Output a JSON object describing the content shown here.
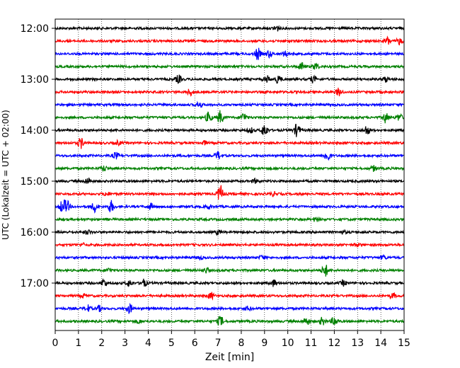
{
  "chart_data": {
    "type": "line",
    "title": "",
    "xlabel": "Zeit  [min]",
    "ylabel": "UTC (Lokalzeit = UTC + 02:00)",
    "xlim": [
      0,
      15
    ],
    "x_ticks": [
      "0",
      "1",
      "2",
      "3",
      "4",
      "5",
      "6",
      "7",
      "8",
      "9",
      "10",
      "11",
      "12",
      "13",
      "14",
      "15"
    ],
    "y_ticks": [
      "12:00",
      "13:00",
      "14:00",
      "15:00",
      "16:00",
      "17:00"
    ],
    "grid": "vertical",
    "minutes_per_trace": 15,
    "trace_colors": [
      "#000000",
      "#ff0000",
      "#0000ff",
      "#008000"
    ],
    "traces": [
      {
        "start": "12:00",
        "events": [
          [
            9.5,
            0.5
          ]
        ]
      },
      {
        "start": "12:15",
        "events": [
          [
            14.3,
            0.6
          ],
          [
            14.8,
            0.5
          ]
        ]
      },
      {
        "start": "12:30",
        "events": [
          [
            8.7,
            0.9
          ],
          [
            9.2,
            0.5
          ],
          [
            9.9,
            0.4
          ]
        ]
      },
      {
        "start": "12:45",
        "events": [
          [
            10.6,
            0.6
          ],
          [
            11.2,
            0.5
          ]
        ]
      },
      {
        "start": "13:00",
        "events": [
          [
            5.3,
            0.6
          ],
          [
            9.1,
            0.5
          ],
          [
            9.6,
            0.6
          ],
          [
            11.1,
            0.5
          ],
          [
            14.2,
            0.4
          ]
        ]
      },
      {
        "start": "13:15",
        "events": [
          [
            5.8,
            0.5
          ],
          [
            12.2,
            0.6
          ]
        ]
      },
      {
        "start": "13:30",
        "events": [
          [
            6.2,
            0.4
          ]
        ]
      },
      {
        "start": "13:45",
        "events": [
          [
            6.6,
            0.8
          ],
          [
            7.1,
            1.0
          ],
          [
            8.1,
            0.7
          ],
          [
            14.2,
            0.8
          ],
          [
            14.8,
            0.5
          ]
        ]
      },
      {
        "start": "14:00",
        "events": [
          [
            9.0,
            1.0
          ],
          [
            10.4,
            1.0
          ],
          [
            13.4,
            0.7
          ],
          [
            8.4,
            0.4
          ]
        ]
      },
      {
        "start": "14:15",
        "events": [
          [
            1.1,
            0.8
          ],
          [
            2.7,
            0.3
          ],
          [
            6.4,
            0.3
          ]
        ]
      },
      {
        "start": "14:30",
        "events": [
          [
            2.6,
            0.5
          ],
          [
            7.0,
            0.6
          ],
          [
            11.7,
            0.9
          ]
        ]
      },
      {
        "start": "14:45",
        "events": [
          [
            2.1,
            0.4
          ],
          [
            13.7,
            0.4
          ]
        ]
      },
      {
        "start": "15:00",
        "events": [
          [
            1.4,
            0.5
          ],
          [
            8.6,
            0.3
          ]
        ]
      },
      {
        "start": "15:15",
        "events": [
          [
            7.1,
            1.3
          ],
          [
            2.2,
            0.3
          ],
          [
            9.4,
            0.3
          ]
        ]
      },
      {
        "start": "15:30",
        "events": [
          [
            0.3,
            0.9
          ],
          [
            0.5,
            0.9
          ],
          [
            1.7,
            0.8
          ],
          [
            2.4,
            0.9
          ],
          [
            4.1,
            0.4
          ],
          [
            6.6,
            0.3
          ]
        ]
      },
      {
        "start": "15:45",
        "events": [
          [
            11.2,
            0.3
          ]
        ]
      },
      {
        "start": "16:00",
        "events": [
          [
            1.4,
            0.3
          ],
          [
            7.0,
            0.3
          ],
          [
            12.4,
            0.2
          ]
        ]
      },
      {
        "start": "16:15",
        "events": [
          [
            1.2,
            0.2
          ],
          [
            13.0,
            0.2
          ]
        ]
      },
      {
        "start": "16:30",
        "events": [
          [
            6.2,
            0.3
          ],
          [
            8.9,
            0.3
          ],
          [
            14.1,
            0.3
          ]
        ]
      },
      {
        "start": "16:45",
        "events": [
          [
            11.6,
            1.0
          ],
          [
            2.3,
            0.3
          ],
          [
            6.5,
            0.4
          ]
        ]
      },
      {
        "start": "17:00",
        "events": [
          [
            2.1,
            0.6
          ],
          [
            3.2,
            0.5
          ],
          [
            3.8,
            0.6
          ],
          [
            9.4,
            0.5
          ],
          [
            12.4,
            0.4
          ]
        ]
      },
      {
        "start": "17:15",
        "events": [
          [
            1.2,
            0.3
          ],
          [
            6.7,
            0.5
          ],
          [
            14.5,
            0.4
          ]
        ]
      },
      {
        "start": "17:30",
        "events": [
          [
            1.4,
            0.5
          ],
          [
            1.9,
            0.4
          ],
          [
            3.2,
            0.7
          ],
          [
            8.3,
            0.3
          ]
        ]
      },
      {
        "start": "17:45",
        "events": [
          [
            7.1,
            0.8
          ],
          [
            10.8,
            0.6
          ],
          [
            11.5,
            0.6
          ],
          [
            12.0,
            0.7
          ],
          [
            3.6,
            0.3
          ]
        ]
      }
    ]
  }
}
